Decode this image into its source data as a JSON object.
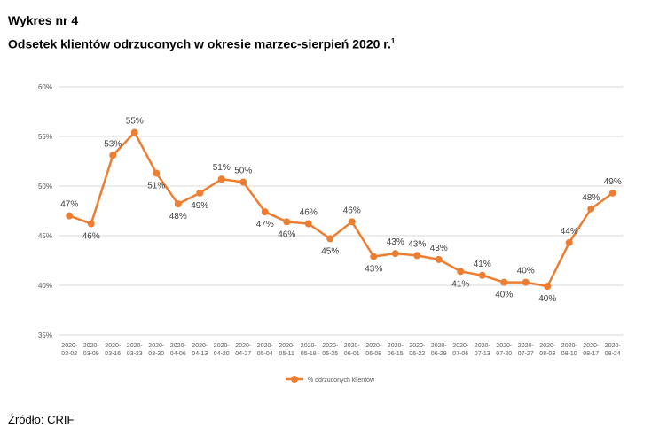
{
  "heading": {
    "label": "Wykres nr 4",
    "title": "Odsetek klientów odrzuconych w okresie marzec-sierpień 2020 r.",
    "footnote_mark": "1"
  },
  "source": "Źródło: CRIF",
  "colors": {
    "line": "#ED7D31",
    "grid": "#D9D9D9",
    "text": "#595959"
  },
  "chart_data": {
    "type": "line",
    "x": [
      "2020-03-02",
      "2020-03-09",
      "2020-03-16",
      "2020-03-23",
      "2020-03-30",
      "2020-04-06",
      "2020-04-13",
      "2020-04-20",
      "2020-04-27",
      "2020-05-04",
      "2020-05-11",
      "2020-05-18",
      "2020-05-25",
      "2020-06-01",
      "2020-06-08",
      "2020-06-15",
      "2020-06-22",
      "2020-06-29",
      "2020-07-06",
      "2020-07-13",
      "2020-07-20",
      "2020-07-27",
      "2020-08-03",
      "2020-08-10",
      "2020-08-17",
      "2020-08-24"
    ],
    "series": [
      {
        "name": "% odrzuconych klientów",
        "values": [
          47.0,
          46.2,
          53.1,
          55.4,
          51.3,
          48.2,
          49.3,
          50.7,
          50.4,
          47.4,
          46.4,
          46.2,
          44.7,
          46.4,
          42.9,
          43.2,
          43.0,
          42.6,
          41.4,
          41.0,
          40.3,
          40.3,
          39.9,
          44.3,
          47.7,
          49.3
        ],
        "labels": [
          "47%",
          "46%",
          "53%",
          "55%",
          "51%",
          "48%",
          "49%",
          "51%",
          "50%",
          "47%",
          "46%",
          "46%",
          "45%",
          "46%",
          "43%",
          "43%",
          "43%",
          "43%",
          "41%",
          "41%",
          "40%",
          "40%",
          "40%",
          "44%",
          "48%",
          "49%"
        ]
      }
    ],
    "ylim": [
      35,
      60
    ],
    "yticks": [
      "35%",
      "40%",
      "45%",
      "50%",
      "55%",
      "60%"
    ],
    "ytick_values": [
      35,
      40,
      45,
      50,
      55,
      60
    ],
    "legend": "bottom",
    "grid": true
  }
}
